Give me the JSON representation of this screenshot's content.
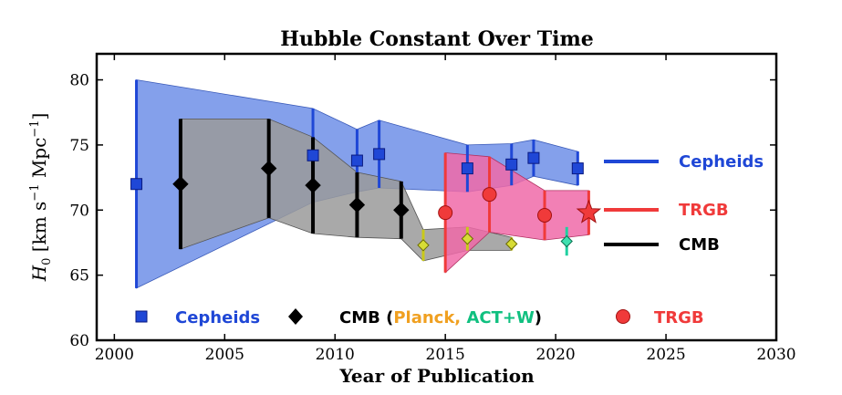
{
  "chart_data": {
    "type": "scatter",
    "title": "Hubble Constant Over Time",
    "xlabel": "Year of Publication",
    "ylabel": "H_0 [km s^-1 Mpc^-1]",
    "xlim": [
      1999.2,
      2030
    ],
    "ylim": [
      60,
      82
    ],
    "xticks": [
      2000,
      2005,
      2010,
      2015,
      2020,
      2025,
      2030
    ],
    "yticks": [
      60,
      65,
      70,
      75,
      80
    ],
    "grid": false,
    "legend_right": [
      "Cepheids",
      "TRGB",
      "CMB"
    ],
    "legend_bottom": {
      "cepheids": "Cepheids",
      "cmb_prefix": "CMB (",
      "planck": "Planck,",
      "actw": "ACT+W",
      "cmb_suffix": ")",
      "trgb": "TRGB"
    },
    "colors": {
      "cepheids": "#1f47d6",
      "cepheids_band": "#6f8fe8",
      "cmb": "#000000",
      "cmb_band": "#9a9a9a",
      "trgb": "#f03a3a",
      "trgb_band": "#f06aa8",
      "planck": "#f0a020",
      "actw": "#10c080",
      "planck_marker": "#d7dc35",
      "actw_marker": "#3fe0b0"
    },
    "series": [
      {
        "name": "Cepheids",
        "marker": "square",
        "points": [
          {
            "x": 2001,
            "y": 72.0,
            "lo": 64.0,
            "hi": 80.0
          },
          {
            "x": 2009,
            "y": 74.2,
            "lo": 70.6,
            "hi": 77.8
          },
          {
            "x": 2011,
            "y": 73.8,
            "lo": 71.4,
            "hi": 76.2
          },
          {
            "x": 2012,
            "y": 74.3,
            "lo": 71.7,
            "hi": 76.9
          },
          {
            "x": 2016,
            "y": 73.2,
            "lo": 71.4,
            "hi": 75.0
          },
          {
            "x": 2018,
            "y": 73.5,
            "lo": 71.9,
            "hi": 75.1
          },
          {
            "x": 2019,
            "y": 74.0,
            "lo": 72.6,
            "hi": 75.4
          },
          {
            "x": 2021,
            "y": 73.2,
            "lo": 71.9,
            "hi": 74.5
          }
        ]
      },
      {
        "name": "CMB",
        "marker": "diamond",
        "points": [
          {
            "x": 2003,
            "y": 72.0,
            "lo": 67.0,
            "hi": 77.0
          },
          {
            "x": 2007,
            "y": 73.2,
            "lo": 69.4,
            "hi": 77.0
          },
          {
            "x": 2009,
            "y": 71.9,
            "lo": 68.2,
            "hi": 75.6
          },
          {
            "x": 2011,
            "y": 70.4,
            "lo": 67.9,
            "hi": 72.9
          },
          {
            "x": 2013,
            "y": 70.0,
            "lo": 67.8,
            "hi": 72.2
          }
        ]
      },
      {
        "name": "Planck",
        "marker": "diamond",
        "points": [
          {
            "x": 2014,
            "y": 67.3,
            "lo": 66.1,
            "hi": 68.5
          },
          {
            "x": 2016,
            "y": 67.8,
            "lo": 66.9,
            "hi": 68.7
          },
          {
            "x": 2018,
            "y": 67.4,
            "lo": 66.9,
            "hi": 67.9
          }
        ]
      },
      {
        "name": "ACT+W",
        "marker": "diamond",
        "points": [
          {
            "x": 2020.5,
            "y": 67.6,
            "lo": 66.5,
            "hi": 68.7
          }
        ]
      },
      {
        "name": "TRGB",
        "marker": "circle",
        "points": [
          {
            "x": 2015,
            "y": 69.8,
            "lo": 65.2,
            "hi": 74.4
          },
          {
            "x": 2017,
            "y": 71.2,
            "lo": 68.3,
            "hi": 74.1
          },
          {
            "x": 2019.5,
            "y": 69.6,
            "lo": 67.7,
            "hi": 71.5
          }
        ]
      },
      {
        "name": "TRGB",
        "marker": "star",
        "points": [
          {
            "x": 2021.5,
            "y": 69.8,
            "lo": 68.1,
            "hi": 71.5
          }
        ]
      }
    ],
    "bands": [
      {
        "name": "Cepheids",
        "upper": [
          [
            2001,
            80.0
          ],
          [
            2009,
            77.8
          ],
          [
            2011,
            76.2
          ],
          [
            2012,
            76.9
          ],
          [
            2016,
            75.0
          ],
          [
            2018,
            75.1
          ],
          [
            2019,
            75.4
          ],
          [
            2021,
            74.5
          ]
        ],
        "lower": [
          [
            2001,
            64.0
          ],
          [
            2009,
            70.6
          ],
          [
            2011,
            71.4
          ],
          [
            2012,
            71.7
          ],
          [
            2016,
            71.4
          ],
          [
            2018,
            71.9
          ],
          [
            2019,
            72.6
          ],
          [
            2021,
            71.9
          ]
        ]
      },
      {
        "name": "CMB",
        "upper": [
          [
            2003,
            77.0
          ],
          [
            2007,
            77.0
          ],
          [
            2009,
            75.6
          ],
          [
            2011,
            72.9
          ],
          [
            2013,
            72.2
          ],
          [
            2014,
            68.5
          ],
          [
            2016,
            68.7
          ],
          [
            2018,
            67.9
          ]
        ],
        "lower": [
          [
            2003,
            67.0
          ],
          [
            2007,
            69.4
          ],
          [
            2009,
            68.2
          ],
          [
            2011,
            67.9
          ],
          [
            2013,
            67.8
          ],
          [
            2014,
            66.1
          ],
          [
            2016,
            66.9
          ],
          [
            2018,
            66.9
          ]
        ]
      },
      {
        "name": "TRGB",
        "upper": [
          [
            2015,
            74.4
          ],
          [
            2017,
            74.1
          ],
          [
            2019.5,
            71.5
          ],
          [
            2021.5,
            71.5
          ]
        ],
        "lower": [
          [
            2015,
            65.2
          ],
          [
            2017,
            68.3
          ],
          [
            2019.5,
            67.7
          ],
          [
            2021.5,
            68.1
          ]
        ]
      }
    ]
  }
}
